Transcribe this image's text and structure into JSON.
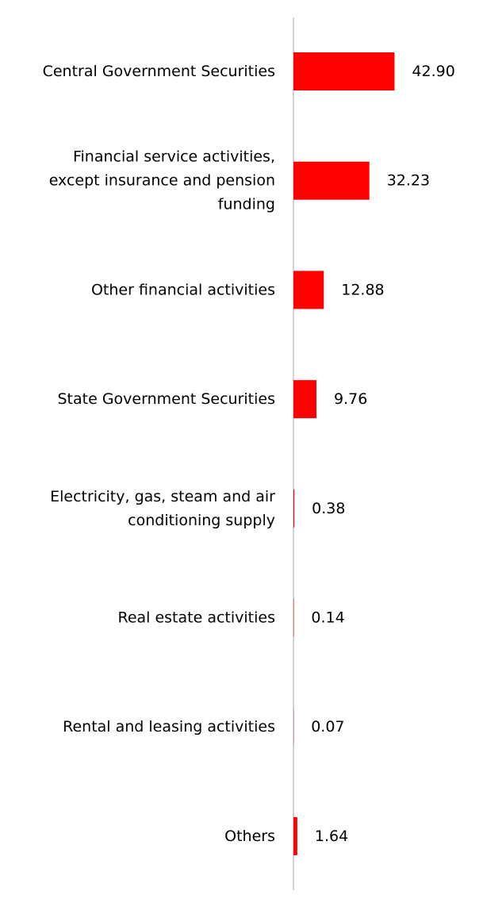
{
  "chart_data": {
    "type": "bar",
    "orientation": "horizontal",
    "categories": [
      "Central Government Securities",
      "Financial service activities, except insurance and pension funding",
      "Other financial activities",
      "State Government Securities",
      "Electricity, gas, steam and air conditioning supply",
      "Real estate activities",
      "Rental and leasing activities",
      "Others"
    ],
    "category_lines": [
      [
        "Central Government Securities"
      ],
      [
        "Financial service activities,",
        "except insurance and pension",
        "funding"
      ],
      [
        "Other financial activities"
      ],
      [
        "State Government Securities"
      ],
      [
        "Electricity, gas, steam and air",
        "conditioning supply"
      ],
      [
        "Real estate activities"
      ],
      [
        "Rental and leasing activities"
      ],
      [
        "Others"
      ]
    ],
    "values": [
      42.9,
      32.23,
      12.88,
      9.76,
      0.38,
      0.14,
      0.07,
      1.64
    ],
    "value_labels": [
      "42.90",
      "32.23",
      "12.88",
      "9.76",
      "0.38",
      "0.14",
      "0.07",
      "1.64"
    ],
    "xlim": [
      0,
      48
    ],
    "grid": false,
    "legend": "none",
    "colors": {
      "bar": "#ff0000",
      "axis": "#d3d3d3",
      "text": "#000000"
    }
  }
}
